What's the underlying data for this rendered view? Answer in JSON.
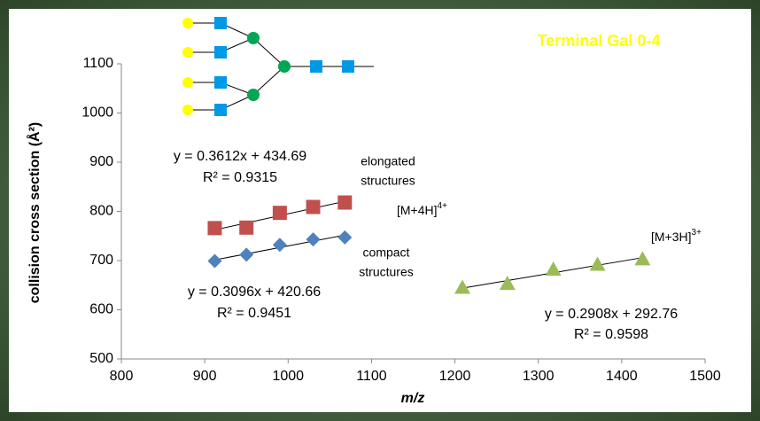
{
  "chart_data": {
    "type": "scatter",
    "xlabel": "m/z",
    "ylabel": "collision cross section (Å²)",
    "xlim": [
      800,
      1500
    ],
    "xticks": [
      800,
      900,
      1000,
      1100,
      1200,
      1300,
      1400,
      1500
    ],
    "ylim": [
      500,
      1100
    ],
    "yticks": [
      500,
      600,
      700,
      800,
      900,
      1000,
      1100
    ],
    "grid": false,
    "trendlines": true,
    "series": [
      {
        "color": "#c0504d",
        "marker": "square",
        "x": [
          912,
          950,
          990,
          1030,
          1068
        ],
        "values": [
          766,
          767,
          797,
          809,
          818
        ]
      },
      {
        "color": "#4f81bd",
        "marker": "diamond",
        "x": [
          912,
          950,
          990,
          1030,
          1068
        ],
        "values": [
          699,
          712,
          732,
          743,
          747
        ]
      },
      {
        "color": "#9bbb59",
        "marker": "triangle",
        "x": [
          1209,
          1263,
          1318,
          1371,
          1425
        ],
        "values": [
          645,
          653,
          682,
          692,
          703
        ]
      }
    ],
    "annotations": [
      "Terminal Gal 0-4",
      "y = 0.3612x + 434.69",
      "R² = 0.9315",
      "elongated",
      "structures",
      {
        "text": "[M+4H]",
        "sup": "4+"
      },
      "compact",
      "structures",
      "y = 0.3096x + 420.66",
      "R² = 0.9451",
      {
        "text": "[M+3H]",
        "sup": "3+"
      },
      "y = 0.2908x + 292.76",
      "R² = 0.9598"
    ]
  }
}
